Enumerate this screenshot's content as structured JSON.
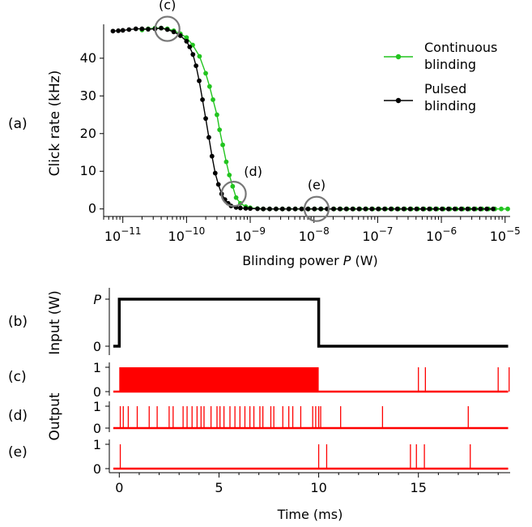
{
  "chart_data": [
    {
      "type": "line",
      "panel_label": "(a)",
      "xlabel_prefix": "Blinding power ",
      "xlabel_var": "P",
      "xlabel_suffix": " (W)",
      "ylabel": "Click rate (kHz)",
      "xscale": "log",
      "xlim": [
        5e-12,
        1.2e-05
      ],
      "ylim": [
        -2,
        49
      ],
      "x_ticks": [
        {
          "base": "10",
          "exp": "−11",
          "value": 1e-11
        },
        {
          "base": "10",
          "exp": "−10",
          "value": 1e-10
        },
        {
          "base": "10",
          "exp": "−9",
          "value": 1e-09
        },
        {
          "base": "10",
          "exp": "−8",
          "value": 1e-08
        },
        {
          "base": "10",
          "exp": "−7",
          "value": 1e-07
        },
        {
          "base": "10",
          "exp": "−6",
          "value": 1e-06
        },
        {
          "base": "10",
          "exp": "−5",
          "value": 1e-05
        }
      ],
      "y_ticks": [
        "0",
        "10",
        "20",
        "30",
        "40"
      ],
      "legend_position": "right",
      "series": [
        {
          "name_line1": "Continuous",
          "name_line2": "blinding",
          "color": "#22c41f",
          "points": [
            [
              2e-11,
              47.5
            ],
            [
              2.5e-11,
              47.8
            ],
            [
              3.2e-11,
              48.0
            ],
            [
              4e-11,
              48.0
            ],
            [
              5e-11,
              47.8
            ],
            [
              6.3e-11,
              47.3
            ],
            [
              8e-11,
              46.5
            ],
            [
              1e-10,
              45.5
            ],
            [
              1.25e-10,
              43.5
            ],
            [
              1.6e-10,
              40.5
            ],
            [
              2e-10,
              36.0
            ],
            [
              2.3e-10,
              32.5
            ],
            [
              2.6e-10,
              29.0
            ],
            [
              3e-10,
              25.0
            ],
            [
              3.3e-10,
              21.0
            ],
            [
              3.7e-10,
              17.0
            ],
            [
              4.2e-10,
              12.5
            ],
            [
              4.7e-10,
              9.0
            ],
            [
              5.3e-10,
              6.0
            ],
            [
              6e-10,
              3.0
            ],
            [
              7e-10,
              1.5
            ],
            [
              8.5e-10,
              0.6
            ],
            [
              1e-09,
              0.3
            ],
            [
              1.3e-09,
              0.1
            ]
          ],
          "tail_from": 1.6e-09,
          "tail_to": 1.1e-05,
          "tail_value": 0
        },
        {
          "name_line1": "Pulsed",
          "name_line2": "blinding",
          "color": "#000000",
          "points": [
            [
              7e-12,
              47.2
            ],
            [
              8.5e-12,
              47.3
            ],
            [
              1e-11,
              47.4
            ],
            [
              1.25e-11,
              47.6
            ],
            [
              1.6e-11,
              47.8
            ],
            [
              2e-11,
              47.8
            ],
            [
              2.5e-11,
              47.7
            ],
            [
              3.2e-11,
              47.8
            ],
            [
              4e-11,
              48.0
            ],
            [
              5e-11,
              47.6
            ],
            [
              6.3e-11,
              47.0
            ],
            [
              8e-11,
              46.0
            ],
            [
              1e-10,
              44.5
            ],
            [
              1.12e-10,
              43.0
            ],
            [
              1.26e-10,
              41.0
            ],
            [
              1.41e-10,
              38.0
            ],
            [
              1.58e-10,
              34.0
            ],
            [
              1.78e-10,
              29.0
            ],
            [
              2e-10,
              24.0
            ],
            [
              2.24e-10,
              19.0
            ],
            [
              2.51e-10,
              14.0
            ],
            [
              2.82e-10,
              9.5
            ],
            [
              3.16e-10,
              6.5
            ],
            [
              3.55e-10,
              4.0
            ],
            [
              4e-10,
              2.5
            ],
            [
              4.5e-10,
              1.5
            ],
            [
              5e-10,
              0.8
            ],
            [
              6e-10,
              0.4
            ],
            [
              7e-10,
              0.25
            ],
            [
              8.5e-10,
              0.15
            ],
            [
              1e-09,
              0.1
            ],
            [
              1.3e-09,
              0.05
            ]
          ],
          "tail_from": 1.6e-09,
          "tail_to": 6.5e-06,
          "tail_value": 0
        }
      ],
      "annotations": [
        {
          "label": "(c)",
          "x": 5e-11,
          "y": 47.8
        },
        {
          "label": "(d)",
          "x": 5.5e-10,
          "y": 4
        },
        {
          "label": "(e)",
          "x": 1.1e-08,
          "y": 0
        }
      ]
    },
    {
      "type": "line",
      "xlabel": "Time (ms)",
      "xlim": [
        -0.5,
        19.6
      ],
      "x_ticks": [
        "0",
        "5",
        "10",
        "15"
      ],
      "shared_ylabel": "Output",
      "panels": [
        {
          "label": "(b)",
          "ylabel": "Input (W)",
          "y_ticks_top": "P",
          "y_ticks_bottom": "0",
          "color": "#000000",
          "segments": [
            {
              "from": -0.3,
              "to": 0.0,
              "level": 0
            },
            {
              "from": 0.0,
              "to": 10.0,
              "level": 1
            },
            {
              "from": 10.0,
              "to": 19.5,
              "level": 0
            }
          ]
        },
        {
          "label": "(c)",
          "y_ticks_top": "1",
          "y_ticks_bottom": "0",
          "color": "#ff0000",
          "dense_from": 0.0,
          "dense_to": 10.0,
          "spikes": [
            15.0,
            15.35,
            19.0,
            19.55
          ]
        },
        {
          "label": "(d)",
          "y_ticks_top": "1",
          "y_ticks_bottom": "0",
          "color": "#ff0000",
          "spikes": [
            0.05,
            0.2,
            0.45,
            0.9,
            1.5,
            1.9,
            2.5,
            2.7,
            3.2,
            3.4,
            3.65,
            3.9,
            4.1,
            4.25,
            4.6,
            4.9,
            5.05,
            5.25,
            5.55,
            5.8,
            6.05,
            6.3,
            6.55,
            6.75,
            7.05,
            7.2,
            7.6,
            7.75,
            8.2,
            8.5,
            8.7,
            9.1,
            9.7,
            9.85,
            10.0,
            10.1,
            11.1,
            13.2,
            17.5
          ]
        },
        {
          "label": "(e)",
          "y_ticks_top": "1",
          "y_ticks_bottom": "0",
          "color": "#ff0000",
          "spikes": [
            0.05,
            10.0,
            10.4,
            14.6,
            14.9,
            15.3,
            17.6
          ]
        }
      ]
    }
  ]
}
